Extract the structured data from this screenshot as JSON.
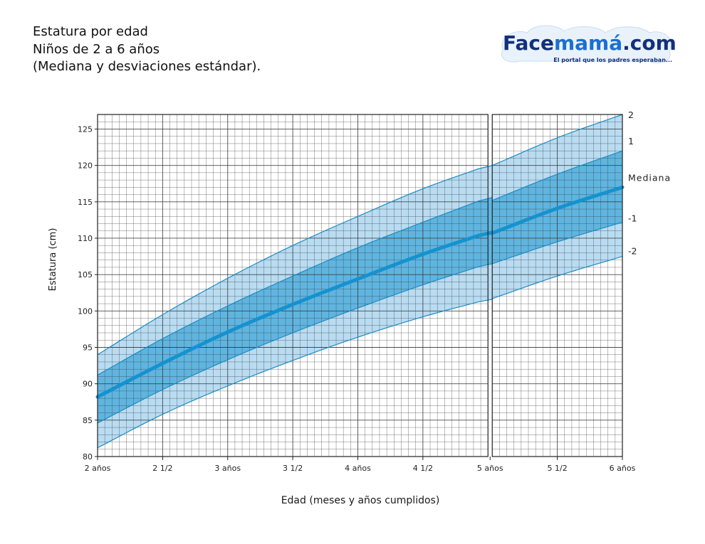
{
  "title_lines": [
    "Estatura por edad",
    "Niños de 2 a 6 años",
    "(Mediana y desviaciones estándar)."
  ],
  "logo": {
    "text_dark": "Face",
    "text_accent": "mamá",
    "text_suffix": ".com",
    "tagline": "El portal que los padres esperaban..."
  },
  "colors": {
    "outer_band": "#b9dcf2",
    "inner_band": "#5fb5e0",
    "median": "#1592cf",
    "curve_line": "#1a8cc4",
    "grid": "#3a3a3a",
    "logo_blue": "#14307a",
    "logo_accent": "#1d6fd1"
  },
  "chart_data": {
    "type": "area",
    "title": "Estatura por edad",
    "xlabel": "Edad (meses y años cumplidos)",
    "ylabel": "Estatura (cm)",
    "xlim": [
      24,
      72
    ],
    "ylim": [
      80,
      127
    ],
    "grid": true,
    "x_ticks": [
      {
        "x": 24,
        "label": "2 años"
      },
      {
        "x": 30,
        "label": "2 1/2"
      },
      {
        "x": 36,
        "label": "3 años"
      },
      {
        "x": 42,
        "label": "3 1/2"
      },
      {
        "x": 48,
        "label": "4 años"
      },
      {
        "x": 54,
        "label": "4 1/2"
      },
      {
        "x": 60,
        "label": "5 años"
      },
      {
        "x": 66,
        "label": "5 1/2"
      },
      {
        "x": 72,
        "label": "6 años"
      }
    ],
    "y_ticks": [
      80,
      85,
      90,
      95,
      100,
      105,
      110,
      115,
      120,
      125
    ],
    "series_labels": [
      "2",
      "1",
      "Mediana",
      "-1",
      "-2"
    ],
    "segments": [
      {
        "x": [
          24,
          30,
          36,
          42,
          48,
          54,
          60
        ],
        "series": [
          {
            "name": "2",
            "values": [
              94,
              99.5,
              104.5,
              109,
              113,
              116.8,
              120
            ]
          },
          {
            "name": "1",
            "values": [
              91.2,
              96.2,
              100.7,
              104.8,
              108.7,
              112.2,
              115.6
            ]
          },
          {
            "name": "Mediana",
            "values": [
              88.2,
              92.8,
              97.1,
              100.9,
              104.4,
              107.8,
              110.8
            ]
          },
          {
            "name": "-1",
            "values": [
              84.6,
              89.2,
              93.3,
              97,
              100.4,
              103.6,
              106.5
            ]
          },
          {
            "name": "-2",
            "values": [
              81.2,
              85.8,
              89.7,
              93.2,
              96.4,
              99.2,
              101.6
            ]
          }
        ]
      },
      {
        "x": [
          60,
          66,
          72
        ],
        "series": [
          {
            "name": "2",
            "values": [
              120,
              123.8,
              127
            ]
          },
          {
            "name": "1",
            "values": [
              115.2,
              118.8,
              122
            ]
          },
          {
            "name": "Mediana",
            "values": [
              110.7,
              114.1,
              117
            ]
          },
          {
            "name": "-1",
            "values": [
              106.5,
              109.5,
              112.2
            ]
          },
          {
            "name": "-2",
            "values": [
              101.7,
              104.8,
              107.5
            ]
          }
        ]
      }
    ]
  }
}
